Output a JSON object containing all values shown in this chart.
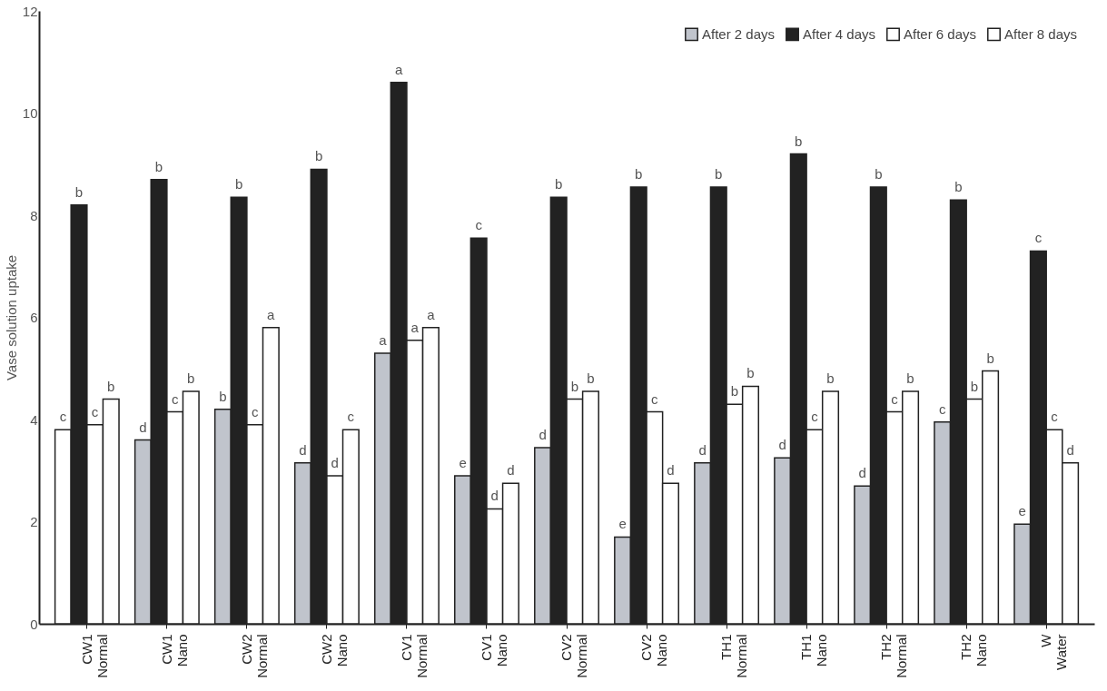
{
  "chart_data": {
    "type": "bar",
    "ylabel": "Vase solution uptake",
    "categories": [
      "CW1\nNormal",
      "CW1\nNano",
      "CW2\nNormal",
      "CW2\nNano",
      "CV1\nNormal",
      "CV1\nNano",
      "CV2\nNormal",
      "CV2\nNano",
      "TH1\nNormal",
      "TH1\nNano",
      "TH2\nNormal",
      "TH2\nNano",
      "W\nWater"
    ],
    "series": [
      {
        "name": "After 2 days",
        "color": "#c0c4cc",
        "colors": [
          "#ffffff",
          "#c0c4cc",
          "#c0c4cc",
          "#c0c4cc",
          "#c0c4cc",
          "#c0c4cc",
          "#c0c4cc",
          "#c0c4cc",
          "#c0c4cc",
          "#c0c4cc",
          "#c0c4cc",
          "#c0c4cc",
          "#c0c4cc"
        ],
        "values": [
          3.8,
          3.6,
          4.2,
          3.15,
          5.3,
          2.9,
          3.45,
          1.7,
          3.15,
          3.25,
          2.7,
          3.95,
          1.95
        ],
        "value_labels": [
          "c",
          "d",
          "b",
          "d",
          "a",
          "e",
          "d",
          "e",
          "d",
          "d",
          "d",
          "c",
          "e"
        ]
      },
      {
        "name": "After 4 days",
        "color": "#222222",
        "values": [
          8.2,
          8.7,
          8.35,
          8.9,
          10.6,
          7.55,
          8.35,
          8.55,
          8.55,
          9.2,
          8.55,
          8.3,
          7.3
        ],
        "value_labels": [
          "b",
          "b",
          "b",
          "b",
          "a",
          "c",
          "b",
          "b",
          "b",
          "b",
          "b",
          "b",
          "c"
        ]
      },
      {
        "name": "After 6 days",
        "color": "#ffffff",
        "values": [
          3.9,
          4.15,
          3.9,
          2.9,
          5.55,
          2.25,
          4.4,
          4.15,
          4.3,
          3.8,
          4.15,
          4.4,
          3.8
        ],
        "value_labels": [
          "c",
          "c",
          "c",
          "d",
          "a",
          "d",
          "b",
          "c",
          "b",
          "c",
          "c",
          "b",
          "c"
        ]
      },
      {
        "name": "After 8 days",
        "color": "#ffffff",
        "values": [
          4.4,
          4.55,
          5.8,
          3.8,
          5.8,
          2.75,
          4.55,
          2.75,
          4.65,
          4.55,
          4.55,
          4.95,
          3.15
        ],
        "value_labels": [
          "b",
          "b",
          "a",
          "c",
          "a",
          "d",
          "b",
          "d",
          "b",
          "b",
          "b",
          "b",
          "d"
        ]
      }
    ],
    "ylim": [
      0,
      12
    ],
    "yticks": [
      0,
      2,
      4,
      6,
      8,
      10,
      12
    ],
    "grid": false,
    "legend": "top right"
  }
}
